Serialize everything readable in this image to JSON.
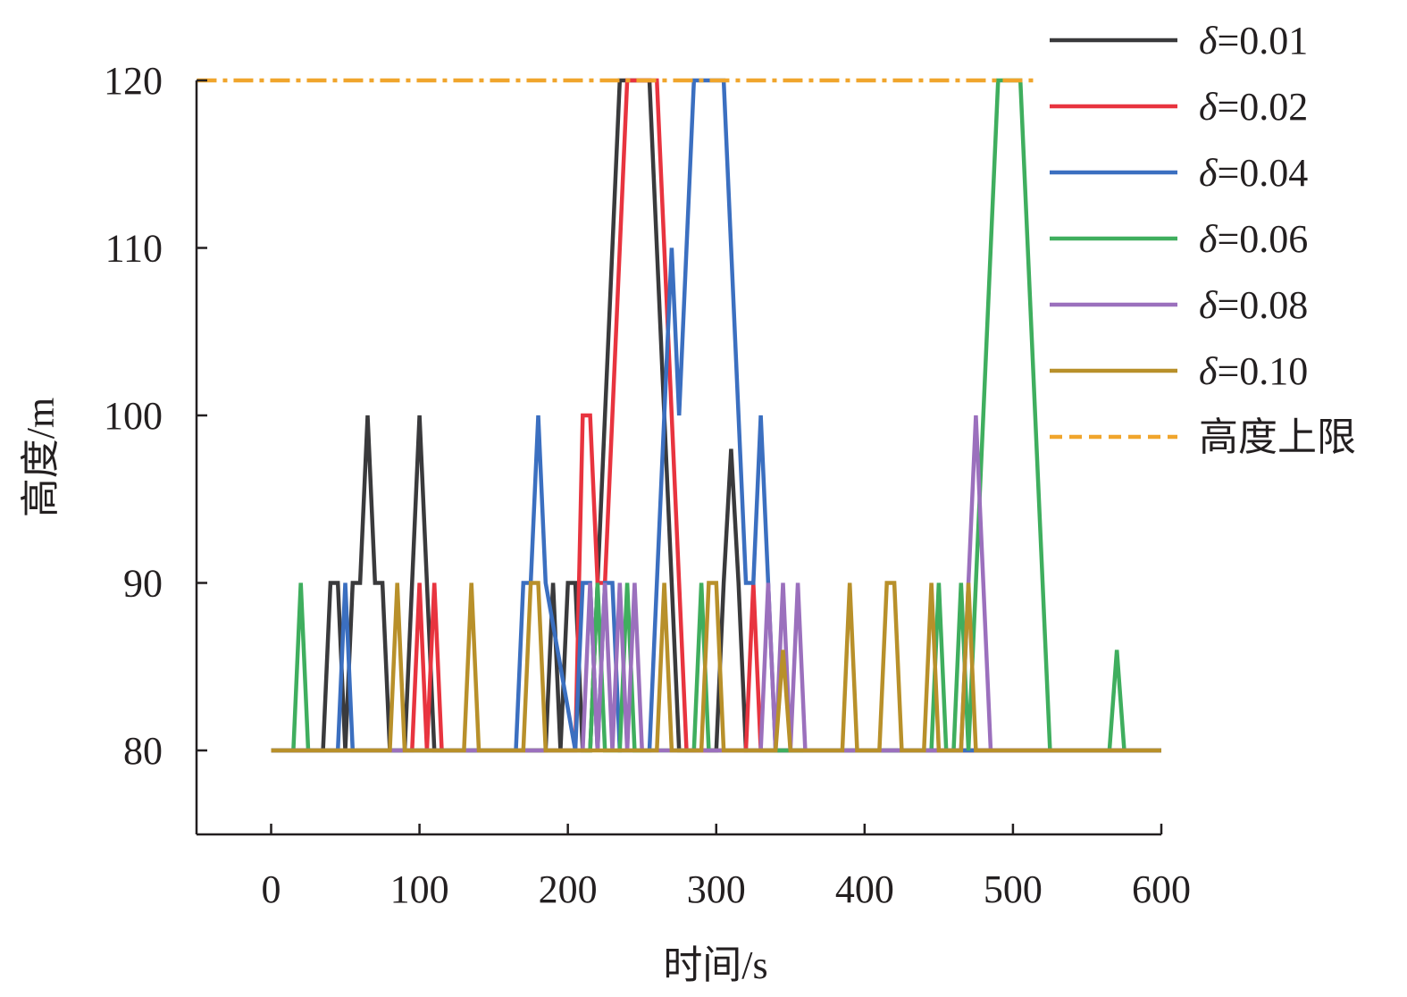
{
  "chart_data": {
    "type": "line",
    "xlabel": "时间/s",
    "ylabel": "高度/m",
    "xlim": [
      -50,
      600
    ],
    "ylim": [
      75,
      122
    ],
    "x_ticks": [
      0,
      100,
      200,
      300,
      400,
      500,
      600
    ],
    "y_ticks": [
      80,
      90,
      100,
      110,
      120
    ],
    "x_tick_labels": [
      "0",
      "100",
      "200",
      "300",
      "400",
      "500",
      "600"
    ],
    "y_tick_labels": [
      "80",
      "90",
      "100",
      "110",
      "120"
    ],
    "grid": false,
    "legend_position": "top-right",
    "limit_line": {
      "name": "高度上限",
      "value": 120,
      "x_range": [
        -50,
        515
      ],
      "color": "#f0a52c"
    },
    "series": [
      {
        "name": "δ=0.01",
        "symbol": "δ",
        "value_label": "=0.01",
        "color": "#3a3a3c",
        "x": [
          0,
          35,
          40,
          45,
          50,
          55,
          60,
          65,
          70,
          75,
          80,
          85,
          90,
          95,
          100,
          105,
          110,
          185,
          190,
          195,
          200,
          205,
          210,
          215,
          220,
          225,
          230,
          235,
          255,
          260,
          265,
          270,
          275,
          300,
          305,
          310,
          315,
          320,
          325,
          330,
          600
        ],
        "y": [
          80,
          80,
          90,
          90,
          80,
          90,
          90,
          100,
          90,
          90,
          80,
          80,
          80,
          90,
          100,
          90,
          80,
          80,
          90,
          80,
          90,
          90,
          80,
          80,
          90,
          100,
          110,
          120,
          120,
          110,
          100,
          90,
          80,
          80,
          90,
          98,
          90,
          80,
          80,
          80,
          80
        ]
      },
      {
        "name": "δ=0.02",
        "symbol": "δ",
        "value_label": "=0.02",
        "color": "#e8343f",
        "x": [
          0,
          95,
          100,
          105,
          110,
          115,
          205,
          210,
          215,
          220,
          225,
          230,
          235,
          240,
          255,
          260,
          265,
          270,
          275,
          280,
          320,
          325,
          330,
          600
        ],
        "y": [
          80,
          80,
          90,
          80,
          90,
          80,
          80,
          100,
          100,
          90,
          90,
          100,
          110,
          120,
          120,
          120,
          110,
          100,
          90,
          80,
          80,
          90,
          80,
          80
        ]
      },
      {
        "name": "δ=0.04",
        "symbol": "δ",
        "value_label": "=0.04",
        "color": "#3b6fc0",
        "x": [
          0,
          45,
          50,
          55,
          165,
          170,
          175,
          180,
          185,
          205,
          210,
          215,
          220,
          225,
          230,
          235,
          255,
          260,
          265,
          270,
          275,
          280,
          285,
          305,
          310,
          315,
          320,
          325,
          330,
          335,
          340,
          600
        ],
        "y": [
          80,
          80,
          90,
          80,
          80,
          90,
          90,
          100,
          90,
          80,
          90,
          90,
          80,
          90,
          90,
          80,
          80,
          90,
          100,
          110,
          100,
          110,
          120,
          120,
          110,
          100,
          90,
          90,
          100,
          90,
          80,
          80
        ]
      },
      {
        "name": "δ=0.06",
        "symbol": "δ",
        "value_label": "=0.06",
        "color": "#3fae5e",
        "x": [
          0,
          15,
          20,
          25,
          215,
          220,
          225,
          235,
          240,
          245,
          285,
          290,
          295,
          445,
          450,
          455,
          460,
          465,
          470,
          475,
          480,
          485,
          490,
          495,
          505,
          510,
          515,
          520,
          525,
          565,
          570,
          575,
          600
        ],
        "y": [
          80,
          80,
          90,
          80,
          80,
          90,
          80,
          80,
          90,
          80,
          80,
          90,
          80,
          80,
          90,
          80,
          80,
          90,
          80,
          90,
          100,
          110,
          120,
          120,
          120,
          110,
          100,
          90,
          80,
          80,
          86,
          80,
          80
        ]
      },
      {
        "name": "δ=0.08",
        "symbol": "δ",
        "value_label": "=0.08",
        "color": "#9b70bd",
        "x": [
          0,
          210,
          215,
          220,
          225,
          230,
          235,
          240,
          245,
          250,
          255,
          330,
          335,
          340,
          345,
          350,
          355,
          360,
          465,
          470,
          475,
          480,
          485,
          600
        ],
        "y": [
          80,
          80,
          90,
          80,
          90,
          80,
          90,
          80,
          90,
          80,
          80,
          80,
          90,
          80,
          90,
          80,
          90,
          80,
          80,
          90,
          100,
          90,
          80,
          80
        ]
      },
      {
        "name": "δ=0.10",
        "symbol": "δ",
        "value_label": "=0.10",
        "color": "#b8902a",
        "x": [
          0,
          80,
          85,
          90,
          130,
          135,
          140,
          170,
          175,
          180,
          185,
          260,
          265,
          270,
          290,
          295,
          300,
          305,
          340,
          345,
          350,
          385,
          390,
          395,
          410,
          415,
          420,
          425,
          440,
          445,
          450,
          465,
          470,
          475,
          600
        ],
        "y": [
          80,
          80,
          90,
          80,
          80,
          90,
          80,
          80,
          90,
          90,
          80,
          80,
          90,
          80,
          80,
          90,
          90,
          80,
          80,
          86,
          80,
          80,
          90,
          80,
          80,
          90,
          90,
          80,
          80,
          90,
          80,
          80,
          90,
          80,
          80
        ]
      }
    ]
  }
}
